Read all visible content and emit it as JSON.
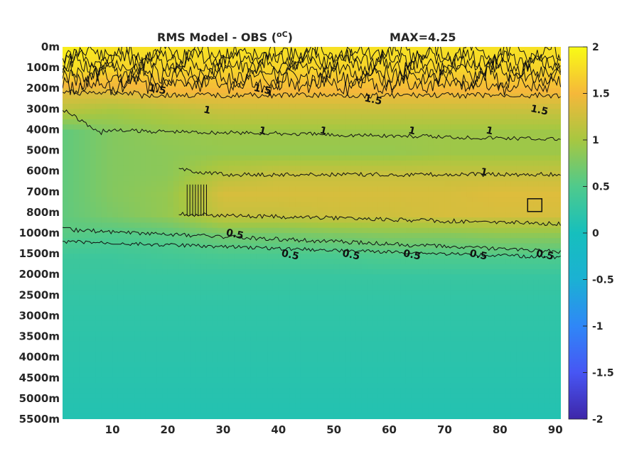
{
  "chart_data": {
    "type": "heatmap",
    "title": "RMS Model - OBS (",
    "title_unit": "oC",
    "title_close": ")",
    "max_label": "MAX=4.25",
    "x_ticks": [
      10,
      20,
      30,
      40,
      50,
      60,
      70,
      80,
      90
    ],
    "xlim": [
      1,
      91
    ],
    "y_ticks": [
      "0m",
      "100m",
      "200m",
      "300m",
      "400m",
      "500m",
      "600m",
      "700m",
      "800m",
      "1000m",
      "1500m",
      "2000m",
      "2500m",
      "3000m",
      "3500m",
      "4000m",
      "4500m",
      "5000m",
      "5500m"
    ],
    "colorbar": {
      "ticks": [
        "2",
        "1.5",
        "1",
        "0.5",
        "0",
        "-0.5",
        "-1",
        "-1.5",
        "-2"
      ],
      "clim": [
        -2,
        2
      ],
      "colormap": "parula"
    },
    "contour_levels": [
      0.5,
      1,
      1.5
    ],
    "values_description_grid": {
      "depth_rows": [
        "0m",
        "100m",
        "200m",
        "300m",
        "400m",
        "500m",
        "600m",
        "700m",
        "800m",
        "1000m",
        "1500m",
        "2000m",
        "2500m",
        "3000m",
        "3500m",
        "4000m",
        "4500m",
        "5000m",
        "5500m"
      ],
      "x_cols": [
        1,
        10,
        20,
        30,
        40,
        50,
        60,
        70,
        80,
        91
      ],
      "z": [
        [
          1.9,
          1.8,
          1.8,
          1.8,
          1.8,
          1.8,
          1.8,
          1.8,
          1.8,
          1.8
        ],
        [
          1.8,
          1.7,
          1.7,
          1.7,
          1.7,
          1.7,
          1.7,
          1.7,
          1.7,
          1.7
        ],
        [
          1.4,
          1.4,
          1.5,
          1.5,
          1.5,
          1.5,
          1.5,
          1.5,
          1.5,
          1.5
        ],
        [
          1.1,
          1.0,
          1.1,
          1.2,
          1.2,
          1.2,
          1.2,
          1.2,
          1.2,
          1.2
        ],
        [
          0.6,
          0.8,
          0.9,
          0.95,
          0.95,
          0.95,
          0.95,
          0.95,
          0.95,
          0.95
        ],
        [
          0.6,
          0.8,
          0.85,
          0.9,
          0.9,
          0.9,
          0.9,
          0.95,
          0.95,
          0.95
        ],
        [
          0.6,
          0.8,
          0.85,
          1.1,
          1.2,
          1.2,
          1.2,
          1.2,
          1.2,
          1.2
        ],
        [
          0.6,
          0.8,
          0.9,
          1.3,
          1.3,
          1.3,
          1.3,
          1.3,
          1.35,
          1.35
        ],
        [
          0.6,
          0.75,
          0.9,
          1.2,
          1.2,
          1.25,
          1.25,
          1.3,
          1.3,
          1.3
        ],
        [
          0.55,
          0.5,
          0.55,
          0.7,
          0.7,
          0.75,
          0.8,
          0.8,
          0.85,
          0.85
        ],
        [
          0.35,
          0.35,
          0.4,
          0.45,
          0.45,
          0.45,
          0.5,
          0.5,
          0.5,
          0.5
        ],
        [
          0.3,
          0.3,
          0.3,
          0.3,
          0.3,
          0.3,
          0.3,
          0.3,
          0.3,
          0.3
        ],
        [
          0.25,
          0.25,
          0.25,
          0.25,
          0.25,
          0.25,
          0.25,
          0.25,
          0.25,
          0.25
        ],
        [
          0.22,
          0.22,
          0.22,
          0.22,
          0.22,
          0.22,
          0.22,
          0.22,
          0.22,
          0.22
        ],
        [
          0.2,
          0.2,
          0.2,
          0.2,
          0.2,
          0.2,
          0.2,
          0.2,
          0.2,
          0.2
        ],
        [
          0.18,
          0.18,
          0.18,
          0.18,
          0.18,
          0.18,
          0.18,
          0.18,
          0.18,
          0.18
        ],
        [
          0.16,
          0.16,
          0.16,
          0.16,
          0.16,
          0.16,
          0.16,
          0.16,
          0.16,
          0.16
        ],
        [
          0.14,
          0.14,
          0.14,
          0.14,
          0.14,
          0.14,
          0.14,
          0.14,
          0.14,
          0.14
        ],
        [
          0.12,
          0.12,
          0.12,
          0.12,
          0.12,
          0.12,
          0.12,
          0.12,
          0.12,
          0.12
        ]
      ]
    },
    "contour_labels": [
      {
        "text": "1.5",
        "x": 18,
        "depth": "200m"
      },
      {
        "text": "1.5",
        "x": 37,
        "depth": "200m"
      },
      {
        "text": "1.5",
        "x": 57,
        "depth": "250m"
      },
      {
        "text": "1.5",
        "x": 87,
        "depth": "300m"
      },
      {
        "text": "1",
        "x": 27,
        "depth": "300m"
      },
      {
        "text": "1",
        "x": 37,
        "depth": "400m"
      },
      {
        "text": "1",
        "x": 48,
        "depth": "400m"
      },
      {
        "text": "1",
        "x": 64,
        "depth": "400m"
      },
      {
        "text": "1",
        "x": 78,
        "depth": "400m"
      },
      {
        "text": "1",
        "x": 77,
        "depth": "600m"
      },
      {
        "text": "0.5",
        "x": 32,
        "depth": "1000m"
      },
      {
        "text": "0.5",
        "x": 42,
        "depth": "1500m"
      },
      {
        "text": "0.5",
        "x": 53,
        "depth": "1500m"
      },
      {
        "text": "0.5",
        "x": 64,
        "depth": "1500m"
      },
      {
        "text": "0.5",
        "x": 76,
        "depth": "1500m"
      },
      {
        "text": "0.5",
        "x": 88,
        "depth": "1500m"
      }
    ]
  }
}
